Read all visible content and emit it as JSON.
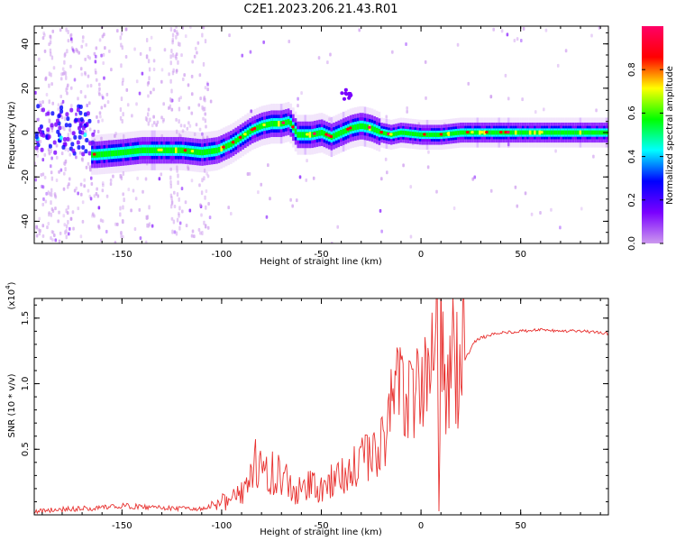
{
  "figure": {
    "title": "C2E1.2023.206.21.43.R01"
  },
  "colors": {
    "snr_line": "#e8312f",
    "frame": "#000000"
  },
  "chart_data": [
    {
      "type": "heatmap",
      "name": "spectrogram",
      "xlabel": "Height of straight line (km)",
      "ylabel": "Frequency (Hz)",
      "xlim": [
        -194,
        94
      ],
      "ylim": [
        -50,
        48
      ],
      "x_ticks": [
        -150,
        -100,
        -50,
        0,
        50
      ],
      "x_tick_labels": [
        "-150",
        "-100",
        "-50",
        "0",
        "50"
      ],
      "y_ticks": [
        -40,
        -20,
        0,
        20,
        40
      ],
      "y_tick_labels": [
        "-40",
        "-20",
        "0",
        "20",
        "40"
      ],
      "colormap": [
        "#cc99ee",
        "#7a00ff",
        "#0000ff",
        "#00ffff",
        "#00ff00",
        "#ffff00",
        "#ff0000",
        "#ff0066"
      ],
      "colorbar": {
        "label": "Normalized spectral amplitude",
        "range": [
          0,
          1
        ],
        "ticks": [
          0.0,
          0.2,
          0.4,
          0.6,
          0.8
        ],
        "tick_labels": [
          "0.0",
          "0.2",
          "0.4",
          "0.6",
          "0.8"
        ]
      },
      "ridge": [
        [
          -163,
          -10
        ],
        [
          -150,
          -9
        ],
        [
          -140,
          -8
        ],
        [
          -130,
          -8
        ],
        [
          -120,
          -8
        ],
        [
          -110,
          -9
        ],
        [
          -102,
          -8
        ],
        [
          -95,
          -5
        ],
        [
          -90,
          -2
        ],
        [
          -85,
          1
        ],
        [
          -80,
          3
        ],
        [
          -75,
          4
        ],
        [
          -70,
          4
        ],
        [
          -66,
          5
        ],
        [
          -62,
          -1
        ],
        [
          -55,
          -1
        ],
        [
          -50,
          0
        ],
        [
          -45,
          -2
        ],
        [
          -40,
          0
        ],
        [
          -35,
          2
        ],
        [
          -30,
          3
        ],
        [
          -25,
          2
        ],
        [
          -20,
          0
        ],
        [
          -15,
          -1
        ],
        [
          -10,
          0
        ],
        [
          0,
          -1
        ],
        [
          10,
          -1
        ],
        [
          20,
          0
        ],
        [
          40,
          0
        ],
        [
          60,
          0
        ],
        [
          80,
          0
        ],
        [
          94,
          0
        ]
      ]
    },
    {
      "type": "line",
      "name": "snr",
      "xlabel": "Height of straight line (km)",
      "ylabel": "SNR (10 * v/v)",
      "scale_label": "(x10",
      "scale_exp": "4",
      "xlim": [
        -194,
        94
      ],
      "ylim": [
        0,
        1.65
      ],
      "x_ticks": [
        -150,
        -100,
        -50,
        0,
        50
      ],
      "x_tick_labels": [
        "-150",
        "-100",
        "-50",
        "0",
        "50"
      ],
      "y_ticks": [
        0.5,
        1.0,
        1.5
      ],
      "y_tick_labels": [
        "0.5",
        "1.0",
        "1.5"
      ],
      "series": [
        {
          "x": [
            -194,
            -180,
            -165,
            -150,
            -140,
            -125,
            -112,
            -105,
            -100,
            -95,
            -88,
            -84,
            -80,
            -76,
            -72,
            -68,
            -64,
            -60,
            -56,
            -52,
            -48,
            -44,
            -40,
            -36,
            -32,
            -28,
            -24,
            -20,
            -17,
            -14,
            -11,
            -8,
            -5,
            -2,
            1,
            4,
            6,
            8,
            9,
            10,
            12,
            15,
            18,
            21,
            24,
            27,
            30,
            35,
            40,
            50,
            60,
            70,
            80,
            90,
            94
          ],
          "y": [
            0.03,
            0.04,
            0.05,
            0.07,
            0.06,
            0.05,
            0.04,
            0.06,
            0.12,
            0.1,
            0.22,
            0.38,
            0.45,
            0.3,
            0.34,
            0.26,
            0.21,
            0.17,
            0.27,
            0.16,
            0.21,
            0.26,
            0.32,
            0.4,
            0.34,
            0.42,
            0.46,
            0.55,
            0.72,
            0.82,
            0.92,
            1.05,
            0.86,
            1.06,
            1.12,
            0.95,
            1.3,
            1.55,
            0.03,
            1.35,
            0.98,
            1.09,
            1.2,
            1.16,
            1.24,
            1.32,
            1.35,
            1.37,
            1.39,
            1.4,
            1.41,
            1.4,
            1.4,
            1.39,
            1.38
          ]
        }
      ]
    }
  ]
}
